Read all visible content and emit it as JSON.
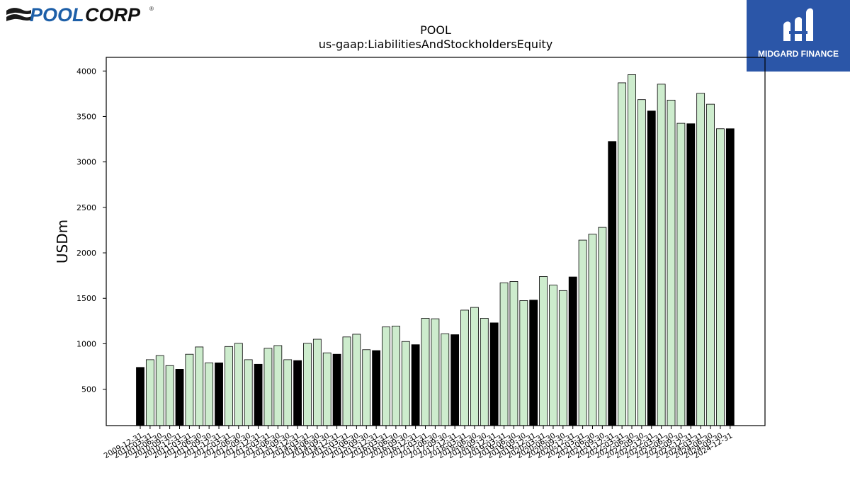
{
  "branding": {
    "company_logo_text": "POOLCORP",
    "company_logo_mark": "®",
    "publisher_logo_text": "MIDGARD FINANCE"
  },
  "colors": {
    "annual_bar": "#000000",
    "quarter_bar": "#cdeccd",
    "bar_edge": "#000000",
    "publisher_bg": "#2b56a8",
    "company_blue": "#1d5fa8"
  },
  "chart_data": {
    "type": "bar",
    "title": "POOL",
    "subtitle": "us-gaap:LiabilitiesAndStockholdersEquity",
    "ylabel": "USDm",
    "xlabel": "",
    "ylim": [
      100,
      4150
    ],
    "yticks": [
      500,
      1000,
      1500,
      2000,
      2500,
      3000,
      3500,
      4000
    ],
    "grid": false,
    "categories": [
      "2009-12-31",
      "2010-03-31",
      "2010-06-30",
      "2010-09-30",
      "2010-12-31",
      "2011-03-31",
      "2011-06-30",
      "2011-09-30",
      "2011-12-31",
      "2012-03-31",
      "2012-06-30",
      "2012-09-30",
      "2012-12-31",
      "2013-03-31",
      "2013-06-30",
      "2013-09-30",
      "2013-12-31",
      "2014-03-31",
      "2014-06-30",
      "2014-09-30",
      "2014-12-31",
      "2015-03-31",
      "2015-06-30",
      "2015-09-30",
      "2015-12-31",
      "2016-03-31",
      "2016-06-30",
      "2016-09-30",
      "2016-12-31",
      "2017-03-31",
      "2017-06-30",
      "2017-09-30",
      "2017-12-31",
      "2018-03-31",
      "2018-06-30",
      "2018-09-30",
      "2018-12-31",
      "2019-03-31",
      "2019-06-30",
      "2019-09-30",
      "2019-12-31",
      "2020-03-31",
      "2020-06-30",
      "2020-09-30",
      "2020-12-31",
      "2021-03-31",
      "2021-06-30",
      "2021-09-30",
      "2021-12-31",
      "2022-03-31",
      "2022-06-30",
      "2022-09-30",
      "2022-12-31",
      "2023-03-31",
      "2023-06-30",
      "2023-09-30",
      "2023-12-31",
      "2024-03-31",
      "2024-06-30",
      "2024-09-30",
      "2024-12-31"
    ],
    "values": [
      740,
      825,
      870,
      760,
      720,
      885,
      965,
      790,
      790,
      970,
      1005,
      825,
      775,
      950,
      980,
      825,
      815,
      1005,
      1050,
      900,
      885,
      1075,
      1105,
      935,
      925,
      1185,
      1195,
      1025,
      990,
      1280,
      1275,
      1110,
      1100,
      1370,
      1400,
      1280,
      1230,
      1670,
      1685,
      1475,
      1480,
      1740,
      1645,
      1585,
      1735,
      2140,
      2205,
      2280,
      3225,
      3870,
      3960,
      3685,
      3560,
      3855,
      3680,
      3425,
      3420,
      3755,
      3635,
      3365,
      3365
    ],
    "bar_kind": [
      "annual",
      "quarter",
      "quarter",
      "quarter",
      "annual",
      "quarter",
      "quarter",
      "quarter",
      "annual",
      "quarter",
      "quarter",
      "quarter",
      "annual",
      "quarter",
      "quarter",
      "quarter",
      "annual",
      "quarter",
      "quarter",
      "quarter",
      "annual",
      "quarter",
      "quarter",
      "quarter",
      "annual",
      "quarter",
      "quarter",
      "quarter",
      "annual",
      "quarter",
      "quarter",
      "quarter",
      "annual",
      "quarter",
      "quarter",
      "quarter",
      "annual",
      "quarter",
      "quarter",
      "quarter",
      "annual",
      "quarter",
      "quarter",
      "quarter",
      "annual",
      "quarter",
      "quarter",
      "quarter",
      "annual",
      "quarter",
      "quarter",
      "quarter",
      "annual",
      "quarter",
      "quarter",
      "quarter",
      "annual",
      "quarter",
      "quarter",
      "quarter",
      "annual"
    ]
  }
}
